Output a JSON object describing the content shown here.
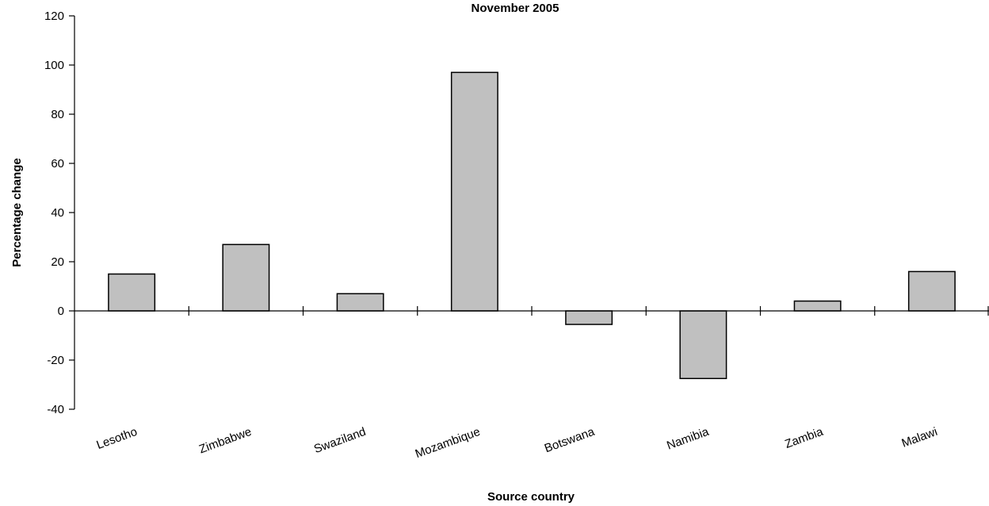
{
  "chart_data": {
    "type": "bar",
    "title": "November 2005",
    "xlabel": "Source country",
    "ylabel": "Percentage change",
    "categories": [
      "Lesotho",
      "Zimbabwe",
      "Swaziland",
      "Mozambique",
      "Botswana",
      "Namibia",
      "Zambia",
      "Malawi"
    ],
    "values": [
      15,
      27,
      7,
      97,
      -5.5,
      -27.5,
      4,
      16
    ],
    "ylim": [
      -40,
      120
    ],
    "yticks": [
      "120",
      "100",
      "80",
      "60",
      "40",
      "20",
      "0",
      "-20",
      "-40"
    ],
    "grid": false,
    "legend": "none",
    "bar_color": "#c0c0c0",
    "bar_stroke": "#000000"
  }
}
